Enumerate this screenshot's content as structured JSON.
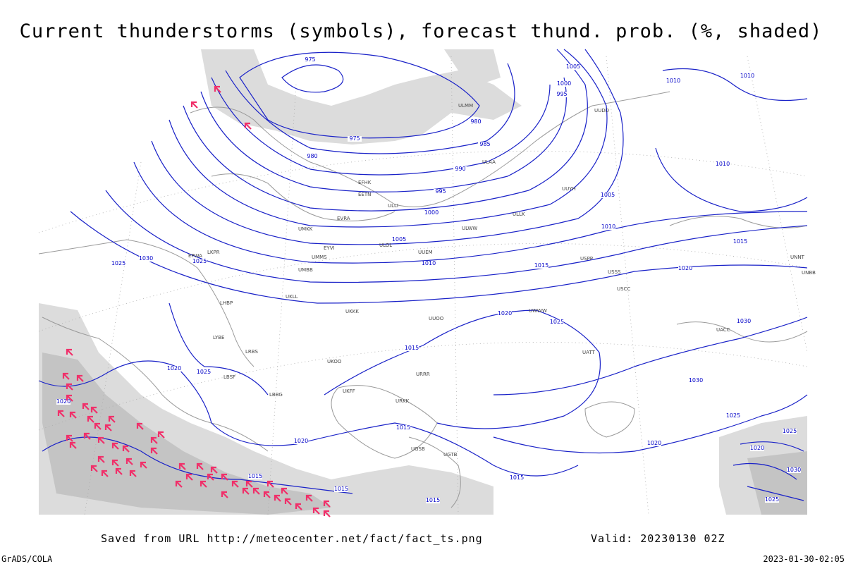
{
  "header": {
    "title": "Current thunderstorms (symbols), forecast thund. prob. (%, shaded)"
  },
  "footer": {
    "source": "Saved from URL http://meteocenter.net/fact/fact_ts.png",
    "valid": "Valid: 20230130 02Z",
    "software": "GrADS/COLA",
    "timestamp": "2023-01-30-02:05"
  },
  "isobar_labels": [
    "975",
    "975",
    "980",
    "980",
    "985",
    "990",
    "995",
    "1000",
    "1005",
    "1010",
    "1015",
    "1020",
    "1005",
    "1000",
    "995",
    "1005",
    "1010",
    "1015",
    "1010",
    "1010",
    "1010",
    "1030",
    "1025",
    "1025",
    "1020",
    "1025",
    "1020",
    "1015",
    "1015",
    "1020",
    "1015",
    "1015",
    "1015",
    "1015",
    "1020",
    "1025",
    "1030",
    "1030",
    "1025",
    "1020",
    "1025",
    "1020",
    "1030",
    "1025"
  ],
  "stations": [
    "ULMM",
    "ULAA",
    "UUYH",
    "ULLI",
    "EFHK",
    "EETN",
    "ULOL",
    "ULWW",
    "UMKK",
    "EVRA",
    "EYVI",
    "UMMS",
    "UUEM",
    "UUOO",
    "UKKK",
    "UKLL",
    "LKPR",
    "EPWA",
    "UMBB",
    "LHBP",
    "LRBS",
    "LBSF",
    "LYBE",
    "LBBG",
    "UKOO",
    "UKFF",
    "URRR",
    "URKK",
    "UGSB",
    "UGTB",
    "UACC",
    "UATT",
    "USSS",
    "USCC",
    "UNNT",
    "UNBB",
    "UWWW",
    "USPP",
    "ULLK",
    "UUDD"
  ]
}
